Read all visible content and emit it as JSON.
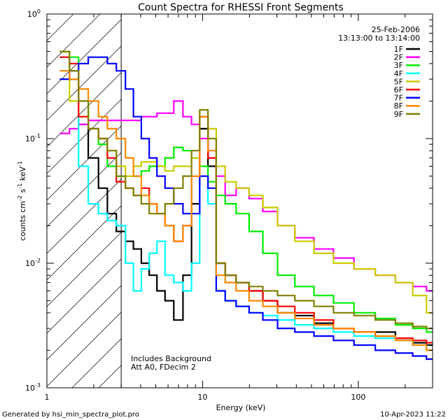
{
  "chart_data": {
    "type": "line",
    "title": "Count Spectra for RHESSI Front Segments",
    "xlabel": "Energy (keV)",
    "ylabel": "counts cm",
    "ylabel_exp1": "-2",
    "ylabel_mid": " s",
    "ylabel_exp2": "-1",
    "ylabel_end": " keV",
    "ylabel_exp3": "-1",
    "x_scale": "log",
    "y_scale": "log",
    "xlim": [
      1,
      300
    ],
    "ylim": [
      0.001,
      1
    ],
    "x_ticks": [
      {
        "value": 1,
        "label": "1"
      },
      {
        "value": 10,
        "label": "10"
      },
      {
        "value": 100,
        "label": "100"
      }
    ],
    "y_ticks": [
      {
        "value": 0.001,
        "base": "10",
        "exp": "-3"
      },
      {
        "value": 0.01,
        "base": "10",
        "exp": "-2"
      },
      {
        "value": 0.1,
        "base": "10",
        "exp": "-1"
      },
      {
        "value": 1,
        "base": "10",
        "exp": "0"
      }
    ],
    "hatched_region": {
      "x_from": 1,
      "x_to": 3
    },
    "date_text": "25-Feb-2006",
    "time_range_text": "13:13:00 to 13:14:00",
    "annotation_line1": "Includes Background",
    "annotation_line2": "Att A0, FDecim 2",
    "footer_left": "Generated by hsi_min_spectra_plot.pro",
    "footer_right": "10-Apr-2023 11:22",
    "series": [
      {
        "name": "1F",
        "color": "#000000",
        "x": [
          1.3,
          1.5,
          1.7,
          2.0,
          2.3,
          2.6,
          3.0,
          3.4,
          3.8,
          4.3,
          4.8,
          5.4,
          6.1,
          7.0,
          8.0,
          9.0,
          10.2,
          11.5,
          13.0,
          15.0,
          18.0,
          22.0,
          27.0,
          34.0,
          45.0,
          60.0,
          80.0,
          110.0,
          150.0,
          200.0,
          250.0,
          300.0
        ],
        "values": [
          0.5,
          0.3,
          0.13,
          0.07,
          0.04,
          0.025,
          0.018,
          0.015,
          0.013,
          0.01,
          0.008,
          0.006,
          0.005,
          0.0035,
          0.008,
          0.03,
          0.12,
          0.06,
          0.01,
          0.008,
          0.007,
          0.006,
          0.005,
          0.004,
          0.0038,
          0.0033,
          0.003,
          0.0028,
          0.0028,
          0.0025,
          0.0023,
          0.0022
        ]
      },
      {
        "name": "2F",
        "color": "#ff00ff",
        "x": [
          1.3,
          1.5,
          1.7,
          2.0,
          2.3,
          2.6,
          3.0,
          3.4,
          3.8,
          4.3,
          4.8,
          5.4,
          6.1,
          7.0,
          8.0,
          9.0,
          10.2,
          11.5,
          13.0,
          15.0,
          18.0,
          22.0,
          27.0,
          34.0,
          45.0,
          60.0,
          80.0,
          110.0,
          150.0,
          200.0,
          250.0,
          300.0
        ],
        "values": [
          0.11,
          0.12,
          0.13,
          0.14,
          0.14,
          0.14,
          0.14,
          0.14,
          0.14,
          0.15,
          0.15,
          0.16,
          0.16,
          0.2,
          0.15,
          0.13,
          0.1,
          0.07,
          0.05,
          0.035,
          0.04,
          0.033,
          0.026,
          0.02,
          0.016,
          0.013,
          0.011,
          0.009,
          0.008,
          0.007,
          0.0065,
          0.006
        ]
      },
      {
        "name": "3F",
        "color": "#00ee00",
        "x": [
          1.3,
          1.5,
          1.7,
          2.0,
          2.3,
          2.6,
          3.0,
          3.4,
          3.8,
          4.3,
          4.8,
          5.4,
          6.1,
          7.0,
          8.0,
          9.0,
          10.2,
          11.5,
          13.0,
          15.0,
          18.0,
          22.0,
          27.0,
          34.0,
          45.0,
          60.0,
          80.0,
          110.0,
          150.0,
          200.0,
          250.0,
          300.0
        ],
        "values": [
          0.5,
          0.45,
          0.2,
          0.12,
          0.09,
          0.06,
          0.05,
          0.05,
          0.05,
          0.055,
          0.06,
          0.06,
          0.07,
          0.085,
          0.08,
          0.07,
          0.06,
          0.045,
          0.035,
          0.03,
          0.025,
          0.018,
          0.012,
          0.008,
          0.0065,
          0.0055,
          0.0048,
          0.004,
          0.0036,
          0.0032,
          0.003,
          0.0028
        ]
      },
      {
        "name": "4F",
        "color": "#00ffff",
        "x": [
          1.3,
          1.5,
          1.7,
          2.0,
          2.3,
          2.6,
          3.0,
          3.4,
          3.8,
          4.3,
          4.8,
          5.4,
          6.1,
          7.0,
          8.0,
          9.0,
          10.2,
          11.5,
          13.0,
          15.0,
          18.0,
          22.0,
          27.0,
          34.0,
          45.0,
          60.0,
          80.0,
          110.0,
          150.0,
          200.0,
          250.0,
          300.0
        ],
        "values": [
          0.45,
          0.4,
          0.06,
          0.03,
          0.025,
          0.022,
          0.02,
          0.01,
          0.006,
          0.009,
          0.012,
          0.015,
          0.008,
          0.007,
          0.006,
          0.01,
          0.05,
          0.03,
          0.006,
          0.005,
          0.0045,
          0.004,
          0.0038,
          0.0035,
          0.0032,
          0.003,
          0.0028,
          0.0026,
          0.0025,
          0.0024,
          0.0022,
          0.002
        ]
      },
      {
        "name": "5F",
        "color": "#cccc00",
        "x": [
          1.3,
          1.5,
          1.7,
          2.0,
          2.3,
          2.6,
          3.0,
          3.4,
          3.8,
          4.3,
          4.8,
          5.4,
          6.1,
          7.0,
          8.0,
          9.0,
          10.2,
          11.5,
          13.0,
          15.0,
          18.0,
          22.0,
          27.0,
          34.0,
          45.0,
          60.0,
          80.0,
          110.0,
          150.0,
          200.0,
          250.0,
          300.0
        ],
        "values": [
          0.5,
          0.2,
          0.15,
          0.12,
          0.1,
          0.08,
          0.06,
          0.05,
          0.06,
          0.065,
          0.065,
          0.06,
          0.055,
          0.06,
          0.06,
          0.07,
          0.15,
          0.12,
          0.06,
          0.045,
          0.04,
          0.035,
          0.028,
          0.02,
          0.015,
          0.012,
          0.01,
          0.009,
          0.008,
          0.007,
          0.0055,
          0.004
        ]
      },
      {
        "name": "6F",
        "color": "#ff0000",
        "x": [
          1.3,
          1.5,
          1.7,
          2.0,
          2.3,
          2.6,
          3.0,
          3.4,
          3.8,
          4.3,
          4.8,
          5.4,
          6.1,
          7.0,
          8.0,
          9.0,
          10.2,
          11.5,
          13.0,
          15.0,
          18.0,
          22.0,
          27.0,
          34.0,
          45.0,
          60.0,
          80.0,
          110.0,
          150.0,
          200.0,
          250.0,
          300.0
        ],
        "values": [
          0.45,
          0.4,
          0.15,
          0.12,
          0.1,
          0.07,
          0.045,
          0.04,
          0.035,
          0.04,
          0.03,
          0.025,
          0.02,
          0.015,
          0.02,
          0.05,
          0.15,
          0.07,
          0.01,
          0.008,
          0.007,
          0.006,
          0.005,
          0.0045,
          0.004,
          0.0035,
          0.003,
          0.0028,
          0.0026,
          0.0025,
          0.0024,
          0.0023
        ]
      },
      {
        "name": "7F",
        "color": "#0000ff",
        "x": [
          1.3,
          1.5,
          1.7,
          2.0,
          2.3,
          2.6,
          3.0,
          3.4,
          3.8,
          4.3,
          4.8,
          5.4,
          6.1,
          7.0,
          8.0,
          9.0,
          10.2,
          11.5,
          13.0,
          15.0,
          18.0,
          22.0,
          27.0,
          34.0,
          45.0,
          60.0,
          80.0,
          110.0,
          150.0,
          200.0,
          250.0,
          300.0
        ],
        "values": [
          0.3,
          0.35,
          0.4,
          0.45,
          0.45,
          0.4,
          0.35,
          0.25,
          0.15,
          0.1,
          0.07,
          0.05,
          0.04,
          0.03,
          0.025,
          0.025,
          0.05,
          0.04,
          0.006,
          0.005,
          0.0045,
          0.004,
          0.0035,
          0.003,
          0.0028,
          0.0026,
          0.0024,
          0.0022,
          0.002,
          0.0019,
          0.0018,
          0.0017
        ]
      },
      {
        "name": "8F",
        "color": "#ff8800",
        "x": [
          1.3,
          1.5,
          1.7,
          2.0,
          2.3,
          2.6,
          3.0,
          3.4,
          3.8,
          4.3,
          4.8,
          5.4,
          6.1,
          7.0,
          8.0,
          9.0,
          10.2,
          11.5,
          13.0,
          15.0,
          18.0,
          22.0,
          27.0,
          34.0,
          45.0,
          60.0,
          80.0,
          110.0,
          150.0,
          200.0,
          250.0,
          300.0
        ],
        "values": [
          0.35,
          0.3,
          0.25,
          0.2,
          0.15,
          0.12,
          0.1,
          0.07,
          0.05,
          0.035,
          0.03,
          0.025,
          0.02,
          0.015,
          0.02,
          0.05,
          0.15,
          0.08,
          0.008,
          0.007,
          0.006,
          0.005,
          0.0045,
          0.004,
          0.0036,
          0.0032,
          0.003,
          0.0028,
          0.0026,
          0.0024,
          0.0022,
          0.002
        ]
      },
      {
        "name": "9F",
        "color": "#808000",
        "x": [
          1.3,
          1.5,
          1.7,
          2.0,
          2.3,
          2.6,
          3.0,
          3.4,
          3.8,
          4.3,
          4.8,
          5.4,
          6.1,
          7.0,
          8.0,
          9.0,
          10.2,
          11.5,
          13.0,
          15.0,
          18.0,
          22.0,
          27.0,
          34.0,
          45.0,
          60.0,
          80.0,
          110.0,
          150.0,
          200.0,
          250.0,
          300.0
        ],
        "values": [
          0.5,
          0.35,
          0.2,
          0.12,
          0.1,
          0.08,
          0.05,
          0.04,
          0.035,
          0.03,
          0.025,
          0.025,
          0.03,
          0.04,
          0.05,
          0.08,
          0.17,
          0.1,
          0.01,
          0.008,
          0.007,
          0.0065,
          0.006,
          0.0055,
          0.005,
          0.0045,
          0.004,
          0.0038,
          0.0035,
          0.0033,
          0.0031,
          0.003
        ]
      }
    ]
  }
}
